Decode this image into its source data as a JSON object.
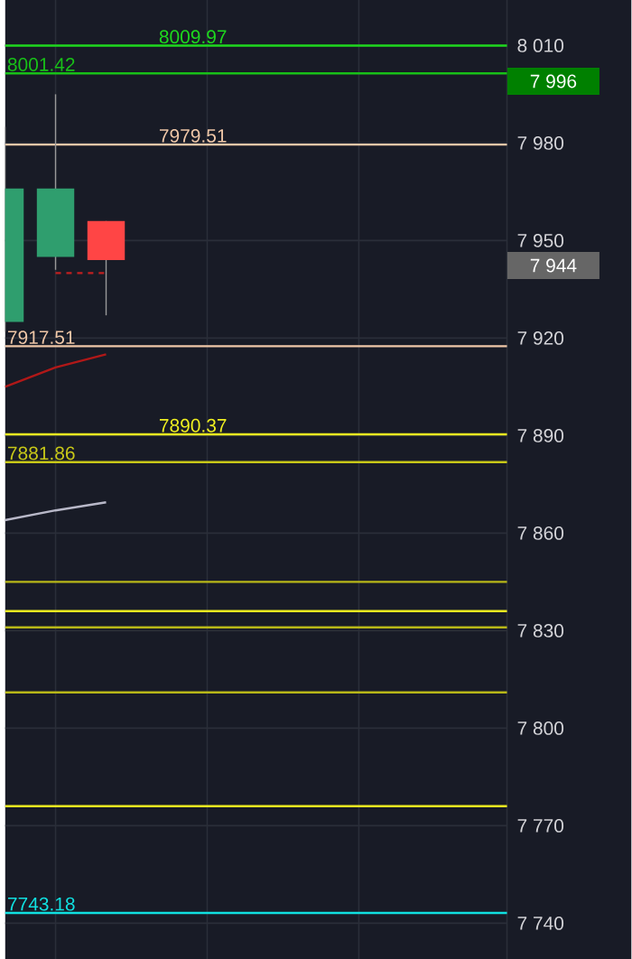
{
  "chart_data": {
    "type": "candlestick",
    "categories": [
      null,
      null,
      null,
      null,
      null,
      null,
      null,
      null,
      null,
      null
    ],
    "ohlc": [
      [
        7925,
        7985,
        7922,
        7966
      ],
      [
        7945,
        7995,
        7941,
        7966
      ],
      [
        7956,
        7956,
        7927,
        7944
      ],
      null,
      null,
      null,
      null,
      null,
      null,
      null
    ],
    "colors": [
      "#2f9e6e",
      "#2f9e6e",
      "#ff4545",
      null,
      null,
      null,
      null,
      null,
      null,
      null
    ],
    "series": [
      {
        "type": "line",
        "color": "#b01818",
        "values": [
          7905,
          7911,
          7915,
          null,
          null,
          null,
          null,
          null,
          null,
          null
        ]
      },
      {
        "type": "line",
        "color": "#b8b8c8",
        "values": [
          7864,
          7867,
          7869.5,
          null,
          null,
          null,
          null,
          null,
          null,
          null
        ]
      },
      {
        "type": "line",
        "color": "#c02020",
        "line_style": "dashed",
        "values": [
          null,
          7940,
          7940,
          null,
          null,
          null,
          null,
          null,
          null,
          null
        ]
      }
    ],
    "ylim": [
      7729,
      8024
    ],
    "yticks": [
      {
        "value": 7740,
        "label": "7 740"
      },
      {
        "value": 7770,
        "label": "7 770"
      },
      {
        "value": 7800,
        "label": "7 800"
      },
      {
        "value": 7830,
        "label": "7 830"
      },
      {
        "value": 7860,
        "label": "7 860"
      },
      {
        "value": 7890,
        "label": "7 890"
      },
      {
        "value": 7920,
        "label": "7 920"
      },
      {
        "value": 7950,
        "label": "7 950"
      },
      {
        "value": 7980,
        "label": "7 980"
      },
      {
        "value": 8010,
        "label": "8 010"
      }
    ],
    "grid": true,
    "ref_lines": [
      {
        "axis": "y",
        "value": 8009.97,
        "label": "8009.97",
        "color": "#1ed81e"
      },
      {
        "axis": "y",
        "value": 8001.42,
        "label": "8001.42",
        "color": "#18c018"
      },
      {
        "axis": "y",
        "value": 7979.51,
        "label": "7979.51",
        "color": "#f0c8a8"
      },
      {
        "axis": "y",
        "value": 7917.51,
        "label": "7917.51",
        "color": "#f0c8a8"
      },
      {
        "axis": "y",
        "value": 7890.37,
        "label": "7890.37",
        "color": "#f0f020"
      },
      {
        "axis": "y",
        "value": 7881.86,
        "label": "7881.86",
        "color": "#c8c818"
      },
      {
        "axis": "y",
        "value": 7845,
        "color": "#b8b818"
      },
      {
        "axis": "y",
        "value": 7836,
        "color": "#f0f020"
      },
      {
        "axis": "y",
        "value": 7831,
        "color": "#b8b818"
      },
      {
        "axis": "y",
        "value": 7811,
        "color": "#b8b818"
      },
      {
        "axis": "y",
        "value": 7776,
        "color": "#f0f020"
      },
      {
        "axis": "y",
        "value": 7743.18,
        "label": "7743.18",
        "color": "#10e0e0"
      }
    ],
    "annotations": [
      "7 996",
      "7 944"
    ]
  }
}
